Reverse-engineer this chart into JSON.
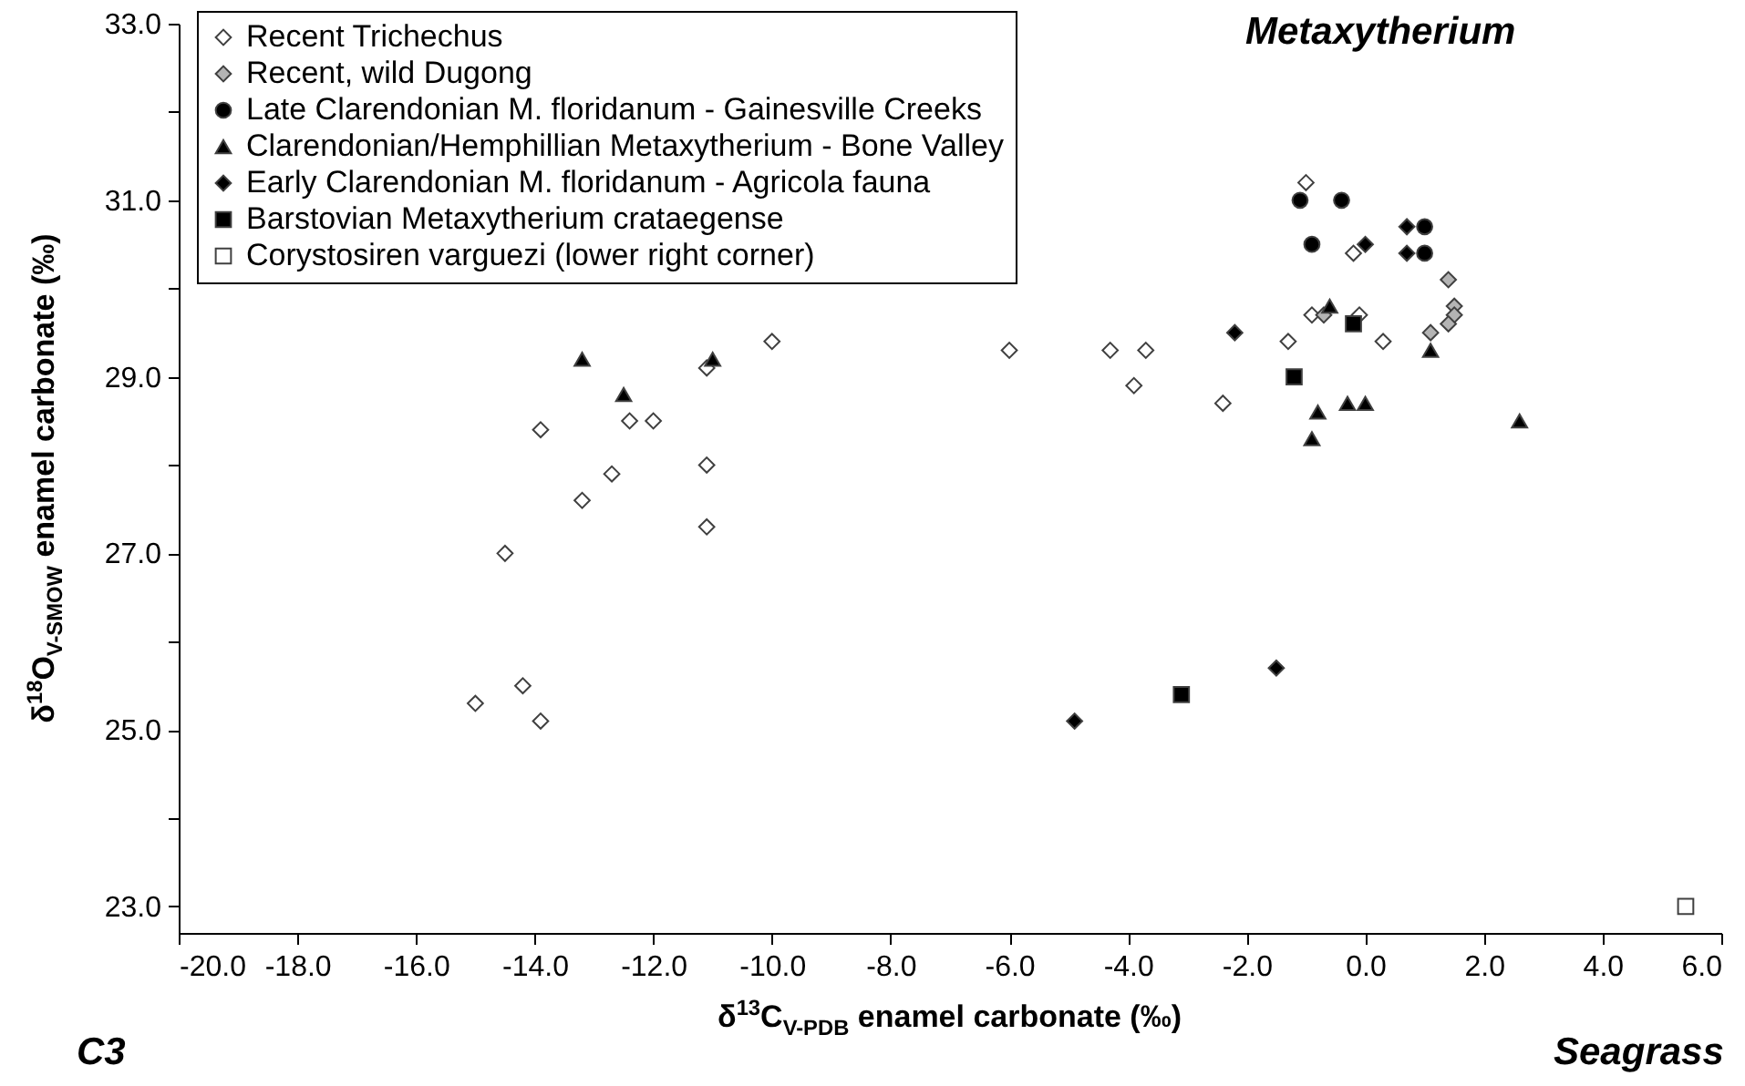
{
  "chart_data": {
    "type": "scatter",
    "xlabel": "δ$^{13}$C$_{V-PDB}$ enamel carbonate (‰)",
    "ylabel": "δ$^{18}$O$_{V-SMOW}$ enamel carbonate (‰)",
    "legend": "top left",
    "annotations": [
      "Metaxytherium",
      "C3",
      "Seagrass"
    ],
    "xlim": [
      -20,
      6
    ],
    "ylim": [
      22.7,
      33
    ],
    "xticks": [
      {
        "value": -20,
        "label": "-20.0"
      },
      {
        "value": -18,
        "label": "-18.0"
      },
      {
        "value": -16,
        "label": "-16.0"
      },
      {
        "value": -14,
        "label": "-14.0"
      },
      {
        "value": -12,
        "label": "-12.0"
      },
      {
        "value": -10,
        "label": "-10.0"
      },
      {
        "value": -8,
        "label": "-8.0"
      },
      {
        "value": -6,
        "label": "-6.0"
      },
      {
        "value": -4,
        "label": "-4.0"
      },
      {
        "value": -2,
        "label": "-2.0"
      },
      {
        "value": 0,
        "label": "0.0"
      },
      {
        "value": 2,
        "label": "2.0"
      },
      {
        "value": 4,
        "label": "4.0"
      },
      {
        "value": 6,
        "label": "6.0"
      }
    ],
    "yticks": [
      {
        "value": 23,
        "label": "23.0"
      },
      {
        "value": 24,
        "label": null
      },
      {
        "value": 25,
        "label": "25.0"
      },
      {
        "value": 26,
        "label": null
      },
      {
        "value": 27,
        "label": "27.0"
      },
      {
        "value": 28,
        "label": null
      },
      {
        "value": 29,
        "label": "29.0"
      },
      {
        "value": 30,
        "label": null
      },
      {
        "value": 31,
        "label": "31.0"
      },
      {
        "value": 32,
        "label": null
      },
      {
        "value": 33,
        "label": "33.0"
      }
    ],
    "series": [
      {
        "name": "Recent Trichechus",
        "color": "#ffffff",
        "marker": "diamond",
        "x": [
          -10.0,
          -11.1,
          -13.9,
          -12.4,
          -12.0,
          -12.7,
          -13.2,
          -11.1,
          -11.1,
          -14.5,
          -14.2,
          -15.0,
          -13.9,
          -6.0,
          -4.3,
          -3.7,
          -3.9,
          -2.4,
          -1.0,
          -0.2,
          -0.9,
          -0.1,
          0.3,
          -1.3
        ],
        "values": [
          29.4,
          29.1,
          28.4,
          28.5,
          28.5,
          27.9,
          27.6,
          28.0,
          27.3,
          27.0,
          25.5,
          25.3,
          25.1,
          29.3,
          29.3,
          29.3,
          28.9,
          28.7,
          31.2,
          30.4,
          29.7,
          29.7,
          29.4,
          29.4
        ]
      },
      {
        "name": "Recent, wild Dugong",
        "color": "#b4b4b4",
        "marker": "diamond",
        "x": [
          1.4,
          1.5,
          1.5,
          1.4,
          1.1,
          -0.7
        ],
        "values": [
          30.1,
          29.8,
          29.7,
          29.6,
          29.5,
          29.7
        ]
      },
      {
        "name": "Late Clarendonian M. floridanum - Gainesville Creeks",
        "color": "#000000",
        "marker": "circle",
        "x": [
          -1.1,
          -0.4,
          -0.9,
          1.0,
          1.0
        ],
        "values": [
          31.0,
          31.0,
          30.5,
          30.7,
          30.4
        ]
      },
      {
        "name": "Clarendonian/Hemphillian Metaxytherium - Bone Valley",
        "color": "#000000",
        "marker": "triangle",
        "x": [
          -13.2,
          -12.5,
          -11.0,
          -0.6,
          1.1,
          -0.8,
          -0.9,
          -0.3,
          0.0,
          2.6
        ],
        "values": [
          29.2,
          28.8,
          29.2,
          29.8,
          29.3,
          28.6,
          28.3,
          28.7,
          28.7,
          28.5
        ]
      },
      {
        "name": "Early Clarendonian M. floridanum - Agricola fauna",
        "color": "#000000",
        "marker": "diamond",
        "x": [
          -2.2,
          0.0,
          0.7,
          0.7,
          -4.9,
          -1.5
        ],
        "values": [
          29.5,
          30.5,
          30.7,
          30.4,
          25.1,
          25.7
        ]
      },
      {
        "name": "Barstovian Metaxytherium crataegense",
        "color": "#000000",
        "marker": "square",
        "x": [
          -0.2,
          -1.2,
          -3.1
        ],
        "values": [
          29.6,
          29.0,
          25.4
        ]
      },
      {
        "name": "Corystosiren varguezi (lower right corner)",
        "color": "#ffffff",
        "marker": "square",
        "x": [
          5.4
        ],
        "values": [
          23.0
        ]
      }
    ]
  }
}
